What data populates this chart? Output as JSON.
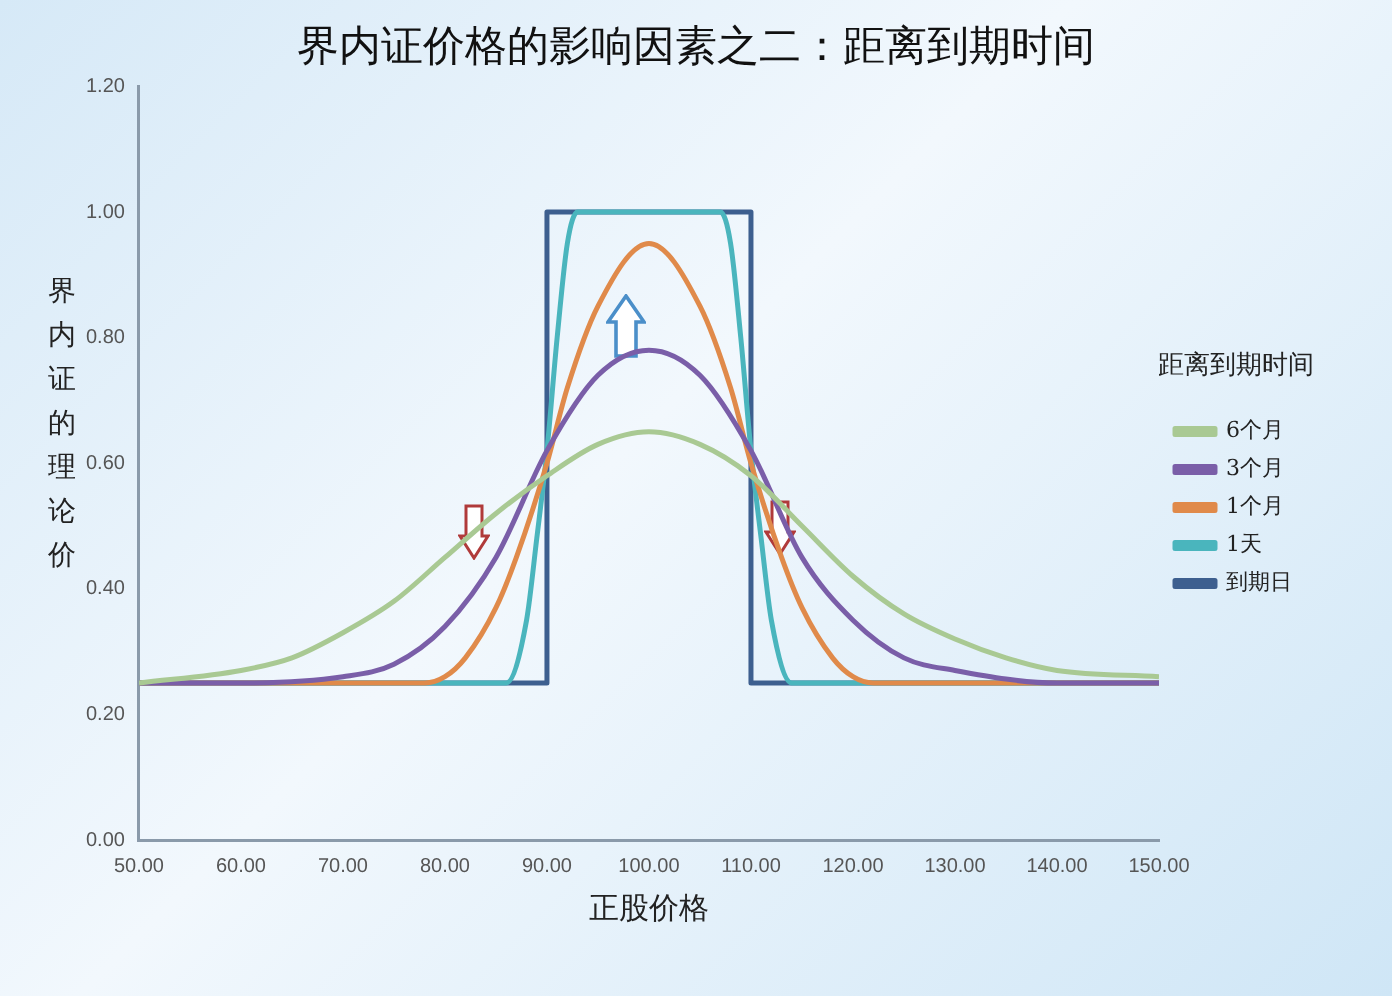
{
  "chart_data": {
    "type": "line",
    "title": "界内证价格的影响因素之二：距离到期时间",
    "xlabel": "正股价格",
    "ylabel": "界内证的理论价",
    "legend_title": "距离到期时间",
    "legend": "right",
    "grid": false,
    "marker": "none",
    "line_style": "solid",
    "xlim": [
      50,
      150
    ],
    "ylim": [
      0,
      1.2
    ],
    "xticks": [
      {
        "value": 50,
        "label": "50.00"
      },
      {
        "value": 60,
        "label": "60.00"
      },
      {
        "value": 70,
        "label": "70.00"
      },
      {
        "value": 80,
        "label": "80.00"
      },
      {
        "value": 90,
        "label": "90.00"
      },
      {
        "value": 100,
        "label": "100.00"
      },
      {
        "value": 110,
        "label": "110.00"
      },
      {
        "value": 120,
        "label": "120.00"
      },
      {
        "value": 130,
        "label": "130.00"
      },
      {
        "value": 140,
        "label": "140.00"
      },
      {
        "value": 150,
        "label": "150.00"
      }
    ],
    "yticks": [
      {
        "value": 0,
        "label": "0.00"
      },
      {
        "value": 0.2,
        "label": "0.20"
      },
      {
        "value": 0.4,
        "label": "0.40"
      },
      {
        "value": 0.6,
        "label": "0.60"
      },
      {
        "value": 0.8,
        "label": "0.80"
      },
      {
        "value": 1,
        "label": "1.00"
      },
      {
        "value": 1.2,
        "label": "1.20"
      }
    ],
    "series": [
      {
        "name": "6个月",
        "color": "#a9c993",
        "x": [
          50,
          60,
          65,
          70,
          75,
          80,
          85,
          90,
          95,
          100,
          105,
          110,
          115,
          120,
          125,
          130,
          135,
          140,
          150
        ],
        "values": [
          0.25,
          0.27,
          0.29,
          0.33,
          0.38,
          0.45,
          0.52,
          0.58,
          0.63,
          0.65,
          0.63,
          0.58,
          0.5,
          0.42,
          0.36,
          0.32,
          0.29,
          0.27,
          0.26
        ]
      },
      {
        "name": "3个月",
        "color": "#7a5ea8",
        "x": [
          50,
          60,
          70,
          75,
          80,
          85,
          90,
          95,
          100,
          105,
          110,
          115,
          120,
          125,
          130,
          140,
          150
        ],
        "values": [
          0.25,
          0.25,
          0.26,
          0.28,
          0.34,
          0.45,
          0.62,
          0.74,
          0.78,
          0.74,
          0.62,
          0.45,
          0.35,
          0.29,
          0.27,
          0.25,
          0.25
        ]
      },
      {
        "name": "1个月",
        "color": "#e08a4a",
        "x": [
          50,
          78,
          80,
          82,
          85,
          87,
          90,
          92,
          95,
          100,
          105,
          108,
          110,
          113,
          115,
          118,
          120,
          122,
          150
        ],
        "values": [
          0.25,
          0.25,
          0.26,
          0.29,
          0.37,
          0.45,
          0.6,
          0.72,
          0.85,
          0.95,
          0.85,
          0.72,
          0.6,
          0.45,
          0.37,
          0.29,
          0.26,
          0.25,
          0.25
        ]
      },
      {
        "name": "1天",
        "color": "#4ab5bd",
        "x": [
          50,
          86,
          88,
          89,
          90,
          91,
          92,
          93,
          107,
          108,
          109,
          110,
          111,
          112,
          114,
          150
        ],
        "values": [
          0.25,
          0.25,
          0.35,
          0.48,
          0.62,
          0.8,
          0.95,
          1,
          1,
          0.95,
          0.8,
          0.62,
          0.48,
          0.35,
          0.25,
          0.25
        ]
      },
      {
        "name": "到期日",
        "color": "#3d5f8f",
        "x": [
          50,
          90,
          90,
          110,
          110,
          150
        ],
        "values": [
          0.25,
          0.25,
          1,
          1,
          0.25,
          0.25
        ]
      }
    ]
  }
}
